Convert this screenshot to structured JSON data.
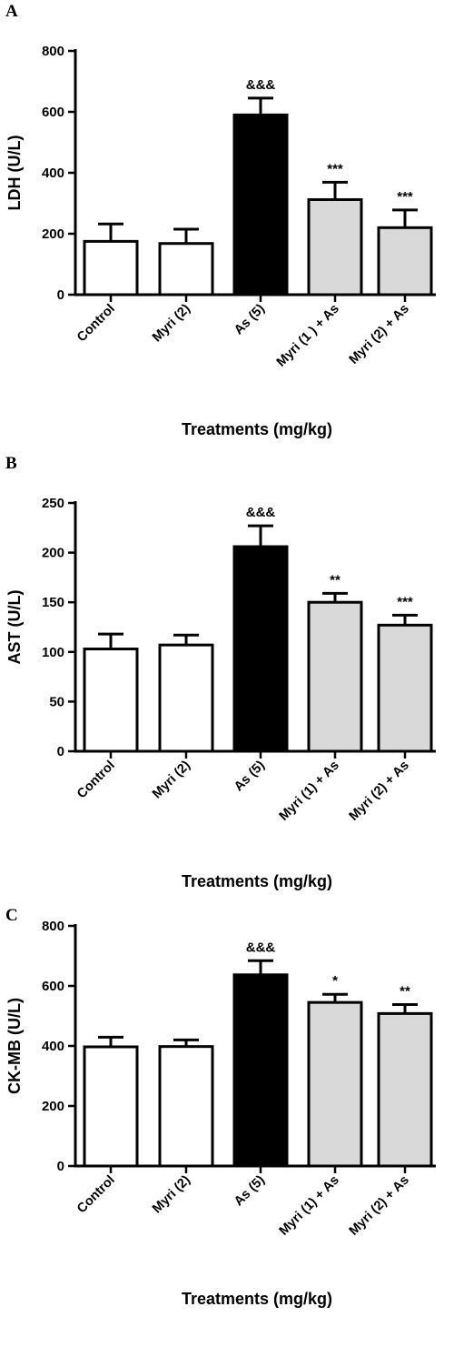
{
  "charts": [
    {
      "panel_label": "A",
      "chart_data": {
        "type": "bar",
        "categories": [
          "Control",
          "Myri (2)",
          "As (5)",
          "Myri (1 ) + As",
          "Myri (2) + As"
        ],
        "values": [
          175,
          168,
          590,
          312,
          220
        ],
        "errors": [
          57,
          47,
          55,
          57,
          58
        ],
        "significance": [
          "",
          "",
          "&&&",
          "***",
          "***"
        ],
        "bar_colors": [
          "#ffffff",
          "#ffffff",
          "#000000",
          "#d9d9d9",
          "#d9d9d9"
        ],
        "xlabel": "Treatments (mg/kg)",
        "ylabel": "LDH (U/L)",
        "ylim": [
          0,
          800
        ],
        "yticks": [
          0,
          200,
          400,
          600,
          800
        ],
        "grid": false
      }
    },
    {
      "panel_label": "B",
      "chart_data": {
        "type": "bar",
        "categories": [
          "Control",
          "Myri (2)",
          "As (5)",
          "Myri (1) + As",
          "Myri (2) + As"
        ],
        "values": [
          103,
          107,
          206,
          150,
          127
        ],
        "errors": [
          15,
          10,
          21,
          9,
          10
        ],
        "significance": [
          "",
          "",
          "&&&",
          "**",
          "***"
        ],
        "bar_colors": [
          "#ffffff",
          "#ffffff",
          "#000000",
          "#d9d9d9",
          "#d9d9d9"
        ],
        "xlabel": "Treatments (mg/kg)",
        "ylabel": "AST (U/L)",
        "ylim": [
          0,
          250
        ],
        "yticks": [
          0,
          50,
          100,
          150,
          200,
          250
        ],
        "grid": false
      }
    },
    {
      "panel_label": "C",
      "chart_data": {
        "type": "bar",
        "categories": [
          "Control",
          "Myri (2)",
          "As (5)",
          "Myri (1) + As",
          "Myri (2) + As"
        ],
        "values": [
          397,
          398,
          637,
          545,
          508
        ],
        "errors": [
          32,
          22,
          47,
          27,
          30
        ],
        "significance": [
          "",
          "",
          "&&&",
          "*",
          "**"
        ],
        "bar_colors": [
          "#ffffff",
          "#ffffff",
          "#000000",
          "#d9d9d9",
          "#d9d9d9"
        ],
        "xlabel": "Treatments (mg/kg)",
        "ylabel": "CK-MB (U/L)",
        "ylim": [
          0,
          800
        ],
        "yticks": [
          0,
          200,
          400,
          600,
          800
        ],
        "grid": false
      }
    }
  ]
}
